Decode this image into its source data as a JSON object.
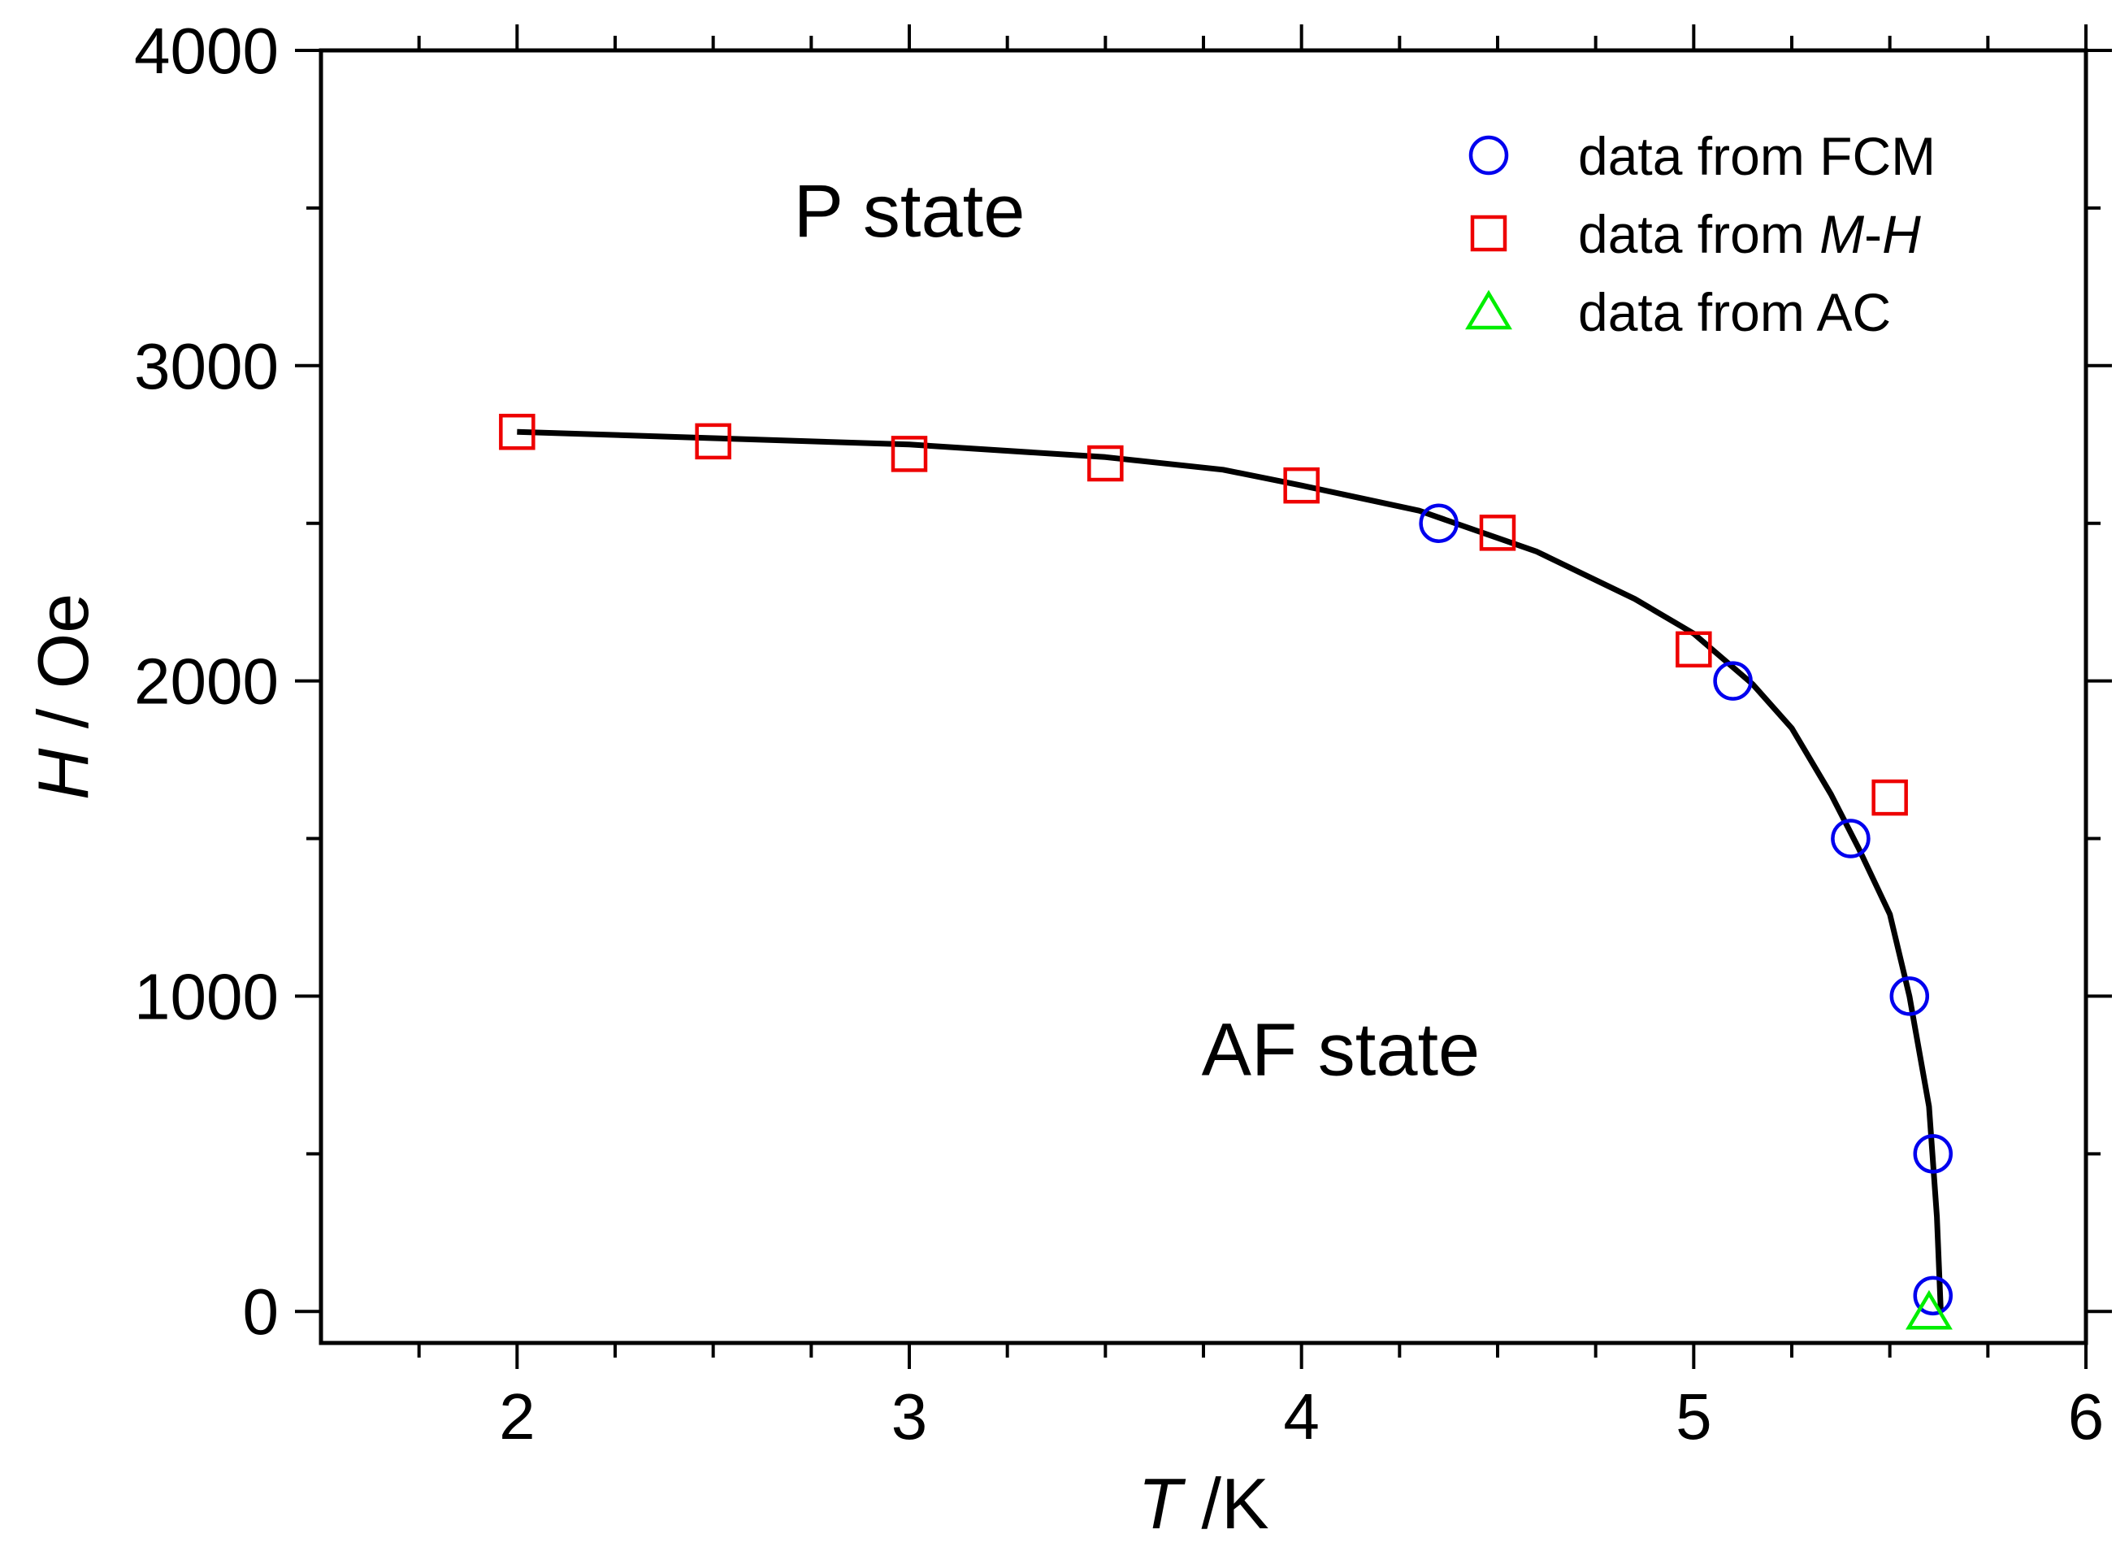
{
  "chart_data": {
    "type": "scatter",
    "title": "",
    "xlabel": {
      "italic": "T",
      "plain": " /K"
    },
    "ylabel": {
      "italic": "H",
      "plain": " / Oe"
    },
    "xlim": [
      1.5,
      6
    ],
    "ylim": [
      -100,
      4000
    ],
    "x_ticks": [
      2,
      3,
      4,
      5,
      6
    ],
    "y_ticks": [
      0,
      1000,
      2000,
      3000,
      4000
    ],
    "x_tick_labels": [
      "2",
      "3",
      "4",
      "5",
      "6"
    ],
    "y_tick_labels": [
      "0",
      "1000",
      "2000",
      "3000",
      "4000"
    ],
    "x_minor_step": 0.25,
    "y_minor_step": 500,
    "legend_position": "top-right",
    "series": [
      {
        "name": "data from FCM",
        "marker": "circle",
        "color": "#0000ee",
        "points": [
          [
            4.35,
            2500
          ],
          [
            5.1,
            2000
          ],
          [
            5.4,
            1500
          ],
          [
            5.55,
            1000
          ],
          [
            5.61,
            500
          ],
          [
            5.61,
            50
          ]
        ]
      },
      {
        "name": "data from M-H",
        "legend_parts": [
          {
            "text": "data from ",
            "italic": false
          },
          {
            "text": "M",
            "italic": true
          },
          {
            "text": "-",
            "italic": false
          },
          {
            "text": "H",
            "italic": true
          }
        ],
        "marker": "square",
        "color": "#ee0000",
        "points": [
          [
            2.0,
            2790
          ],
          [
            2.5,
            2760
          ],
          [
            3.0,
            2720
          ],
          [
            3.5,
            2690
          ],
          [
            4.0,
            2620
          ],
          [
            4.5,
            2470
          ],
          [
            5.0,
            2100
          ],
          [
            5.5,
            1630
          ]
        ]
      },
      {
        "name": "data from AC",
        "marker": "triangle",
        "color": "#00ee00",
        "points": [
          [
            5.6,
            0
          ]
        ]
      }
    ],
    "fit_line": {
      "color": "#000000",
      "points": [
        [
          2.0,
          2790
        ],
        [
          2.5,
          2770
        ],
        [
          3.0,
          2750
        ],
        [
          3.5,
          2710
        ],
        [
          3.8,
          2670
        ],
        [
          4.0,
          2620
        ],
        [
          4.3,
          2540
        ],
        [
          4.6,
          2410
        ],
        [
          4.85,
          2260
        ],
        [
          5.0,
          2150
        ],
        [
          5.15,
          1990
        ],
        [
          5.25,
          1850
        ],
        [
          5.35,
          1640
        ],
        [
          5.42,
          1470
        ],
        [
          5.5,
          1260
        ],
        [
          5.55,
          1000
        ],
        [
          5.6,
          650
        ],
        [
          5.62,
          300
        ],
        [
          5.63,
          0
        ]
      ]
    },
    "annotations": [
      {
        "text": "P state",
        "x": 3.0,
        "y": 3410
      },
      {
        "text": "AF state",
        "x": 4.1,
        "y": 750
      }
    ]
  }
}
